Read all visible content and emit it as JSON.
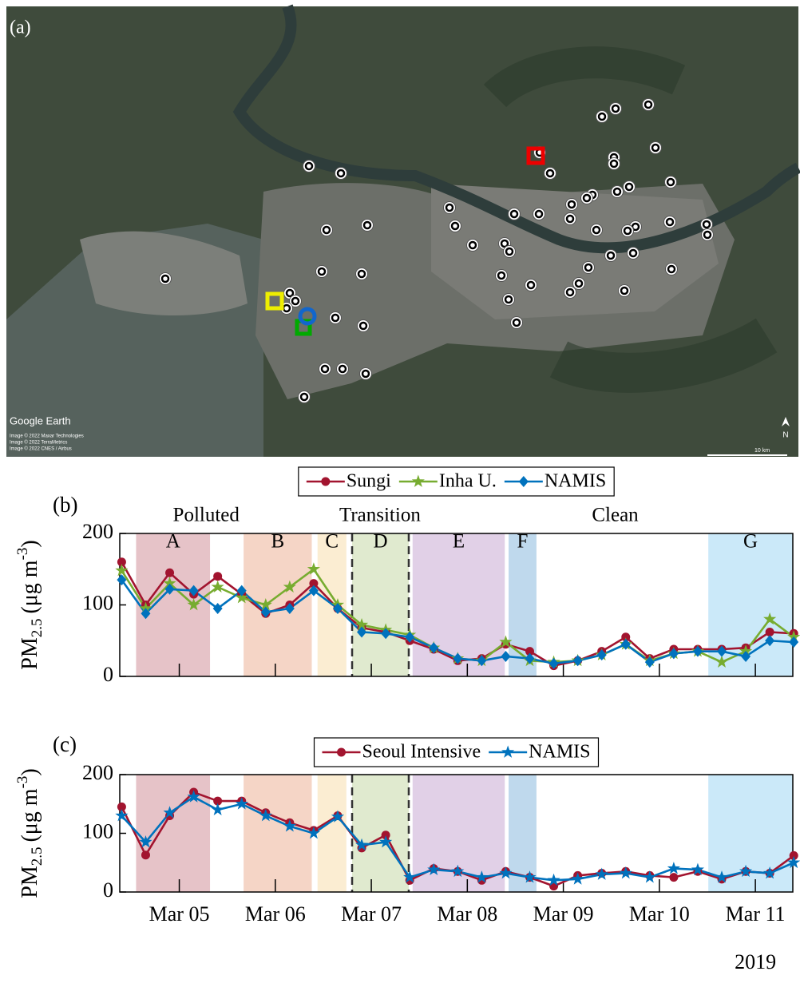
{
  "map": {
    "panel_label": "(a)",
    "brand": "Google Earth",
    "credits": [
      "Image © 2022 Maxar Technologies",
      "Image © 2022 TerraMetrics",
      "Image © 2022 CNES / Airbus"
    ],
    "scale_label": "10 km",
    "north": "N"
  },
  "chart_data": [
    {
      "type": "line",
      "panel_label": "(b)",
      "ylabel": {
        "main": "PM",
        "sub": "2.5",
        "unit": "(μg m",
        "sup": "-3",
        "end": ")"
      },
      "x": [
        4.4,
        4.65,
        4.9,
        5.15,
        5.4,
        5.65,
        5.9,
        6.15,
        6.4,
        6.65,
        6.9,
        7.15,
        7.4,
        7.65,
        7.9,
        8.15,
        8.4,
        8.65,
        8.9,
        9.15,
        9.4,
        9.65,
        9.9,
        10.15,
        10.4,
        10.65,
        10.9,
        11.15,
        11.4
      ],
      "xlim": [
        4.38,
        11.39
      ],
      "xticks": [
        5,
        6,
        7,
        8,
        9,
        10,
        11
      ],
      "ylim": [
        0,
        200
      ],
      "yticks": [
        0,
        100,
        200
      ],
      "series": [
        {
          "name": "Sungi",
          "color": "#a2142f",
          "marker": "circle",
          "values": [
            160,
            100,
            145,
            115,
            140,
            115,
            88,
            100,
            130,
            95,
            68,
            62,
            50,
            38,
            22,
            25,
            45,
            35,
            15,
            22,
            35,
            55,
            25,
            38,
            38,
            38,
            40,
            62,
            60
          ]
        },
        {
          "name": "Inha U.",
          "color": "#77ac30",
          "marker": "star",
          "values": [
            148,
            95,
            130,
            100,
            125,
            110,
            100,
            125,
            150,
            100,
            72,
            65,
            58,
            40,
            25,
            22,
            48,
            22,
            20,
            22,
            30,
            45,
            22,
            32,
            35,
            20,
            35,
            80,
            55
          ]
        },
        {
          "name": "NAMIS",
          "color": "#0072bd",
          "marker": "diamond",
          "values": [
            135,
            88,
            122,
            120,
            95,
            120,
            90,
            95,
            120,
            95,
            62,
            60,
            55,
            40,
            25,
            22,
            28,
            25,
            18,
            22,
            30,
            45,
            20,
            32,
            35,
            35,
            28,
            50,
            48
          ]
        }
      ],
      "periods": [
        {
          "label": "A",
          "start": 4.55,
          "end": 5.32,
          "color": "#e6c3c8"
        },
        {
          "label": "B",
          "start": 5.67,
          "end": 6.38,
          "color": "#f5d5c6"
        },
        {
          "label": "C",
          "start": 6.44,
          "end": 6.74,
          "color": "#fbedd2"
        },
        {
          "label": "D",
          "start": 6.8,
          "end": 7.39,
          "color": "#e0eacf"
        },
        {
          "label": "E",
          "start": 7.43,
          "end": 8.39,
          "color": "#e1d0e7"
        },
        {
          "label": "F",
          "start": 8.43,
          "end": 8.72,
          "color": "#bfd9ed"
        },
        {
          "label": "G",
          "start": 10.51,
          "end": 11.39,
          "color": "#cbe9f9"
        }
      ],
      "dashed_lines": [
        6.8,
        7.39
      ],
      "phases": [
        {
          "label": "Polluted",
          "x": 5.28
        },
        {
          "label": "Transition",
          "x": 7.09
        },
        {
          "label": "Clean",
          "x": 9.54
        }
      ]
    },
    {
      "type": "line",
      "panel_label": "(c)",
      "ylabel": {
        "main": "PM",
        "sub": "2.5",
        "unit": "(μg m",
        "sup": "-3",
        "end": ")"
      },
      "x": [
        4.4,
        4.65,
        4.9,
        5.15,
        5.4,
        5.65,
        5.9,
        6.15,
        6.4,
        6.65,
        6.9,
        7.15,
        7.4,
        7.65,
        7.9,
        8.15,
        8.4,
        8.65,
        8.9,
        9.15,
        9.4,
        9.65,
        9.9,
        10.15,
        10.4,
        10.65,
        10.9,
        11.15,
        11.4
      ],
      "xlim": [
        4.38,
        11.39
      ],
      "xticks": [
        {
          "value": 5,
          "label": "Mar 05"
        },
        {
          "value": 6,
          "label": "Mar 06"
        },
        {
          "value": 7,
          "label": "Mar 07"
        },
        {
          "value": 8,
          "label": "Mar 08"
        },
        {
          "value": 9,
          "label": "Mar 09"
        },
        {
          "value": 10,
          "label": "Mar 10"
        },
        {
          "value": 11,
          "label": "Mar 11"
        }
      ],
      "year_label": "2019",
      "ylim": [
        0,
        200
      ],
      "yticks": [
        0,
        100,
        200
      ],
      "series": [
        {
          "name": "Seoul Intensive",
          "color": "#a2142f",
          "marker": "circle",
          "values": [
            145,
            63,
            130,
            170,
            155,
            155,
            135,
            118,
            105,
            130,
            75,
            97,
            20,
            40,
            35,
            20,
            35,
            25,
            10,
            28,
            32,
            35,
            28,
            25,
            35,
            22,
            35,
            32,
            62
          ]
        },
        {
          "name": "NAMIS",
          "color": "#0072bd",
          "marker": "star",
          "values": [
            130,
            85,
            135,
            162,
            140,
            150,
            130,
            112,
            100,
            128,
            80,
            85,
            25,
            38,
            35,
            25,
            32,
            25,
            20,
            22,
            30,
            32,
            25,
            40,
            38,
            25,
            35,
            32,
            50
          ]
        }
      ],
      "periods": [
        {
          "start": 4.55,
          "end": 5.32,
          "color": "#e6c3c8"
        },
        {
          "start": 5.67,
          "end": 6.38,
          "color": "#f5d5c6"
        },
        {
          "start": 6.44,
          "end": 6.74,
          "color": "#fbedd2"
        },
        {
          "start": 6.8,
          "end": 7.39,
          "color": "#e0eacf"
        },
        {
          "start": 7.43,
          "end": 8.39,
          "color": "#e1d0e7"
        },
        {
          "start": 8.43,
          "end": 8.72,
          "color": "#bfd9ed"
        },
        {
          "start": 10.51,
          "end": 11.39,
          "color": "#cbe9f9"
        }
      ],
      "dashed_lines": [
        6.8,
        7.39
      ]
    }
  ]
}
